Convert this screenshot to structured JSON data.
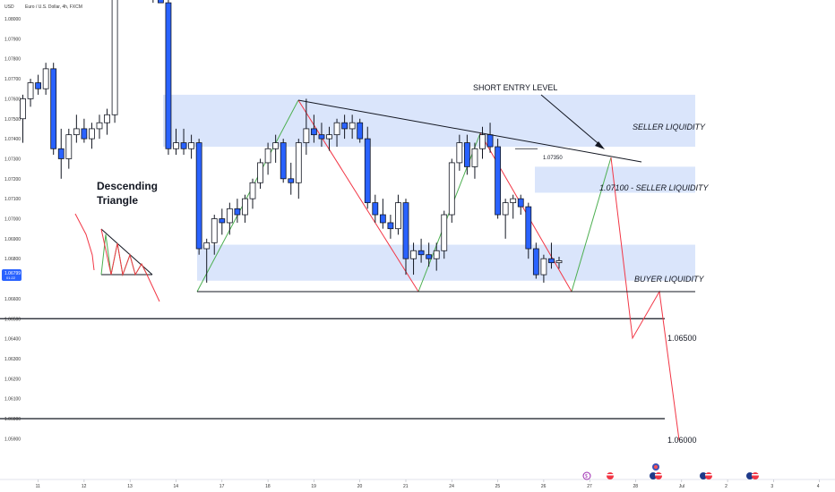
{
  "header": {
    "currency": "USD",
    "symbol_title": "Euro / U.S. Dollar, 4h, FXCM"
  },
  "price_badge": {
    "price": "1.06799",
    "countdown": "01:22"
  },
  "chart_data": {
    "type": "candlestick",
    "title": "Euro / U.S. Dollar, 4h, FXCM",
    "ylabel": "USD",
    "ylim": [
      1.0586,
      1.082
    ],
    "y_ticks": [
      "1.05900",
      "1.06000",
      "1.06100",
      "1.06200",
      "1.06300",
      "1.06400",
      "1.06500",
      "1.06600",
      "1.06700",
      "1.06800",
      "1.06900",
      "1.07000",
      "1.07100",
      "1.07200",
      "1.07300",
      "1.07400",
      "1.07500",
      "1.07600",
      "1.07700",
      "1.07800",
      "1.07900",
      "1.08000"
    ],
    "x_ticks": [
      {
        "label": "11",
        "bar": 2
      },
      {
        "label": "12",
        "bar": 8
      },
      {
        "label": "13",
        "bar": 14
      },
      {
        "label": "14",
        "bar": 20
      },
      {
        "label": "17",
        "bar": 26
      },
      {
        "label": "18",
        "bar": 32
      },
      {
        "label": "19",
        "bar": 38
      },
      {
        "label": "20",
        "bar": 44
      },
      {
        "label": "21",
        "bar": 50
      },
      {
        "label": "24",
        "bar": 56
      },
      {
        "label": "25",
        "bar": 62
      },
      {
        "label": "26",
        "bar": 68
      },
      {
        "label": "27",
        "bar": 74
      },
      {
        "label": "28",
        "bar": 80
      },
      {
        "label": "Jul",
        "bar": 86
      },
      {
        "label": "2",
        "bar": 92
      },
      {
        "label": "3",
        "bar": 98
      },
      {
        "label": "4",
        "bar": 104
      }
    ],
    "candles": [
      {
        "o": 1.075,
        "h": 1.0762,
        "l": 1.0738,
        "c": 1.076
      },
      {
        "o": 1.076,
        "h": 1.077,
        "l": 1.0756,
        "c": 1.0768
      },
      {
        "o": 1.0768,
        "h": 1.0772,
        "l": 1.0762,
        "c": 1.0765
      },
      {
        "o": 1.0765,
        "h": 1.0778,
        "l": 1.0762,
        "c": 1.0775
      },
      {
        "o": 1.0775,
        "h": 1.0778,
        "l": 1.0732,
        "c": 1.0735
      },
      {
        "o": 1.0735,
        "h": 1.0745,
        "l": 1.072,
        "c": 1.073
      },
      {
        "o": 1.073,
        "h": 1.0745,
        "l": 1.0725,
        "c": 1.0742
      },
      {
        "o": 1.0742,
        "h": 1.0752,
        "l": 1.0738,
        "c": 1.0745
      },
      {
        "o": 1.0745,
        "h": 1.075,
        "l": 1.0738,
        "c": 1.074
      },
      {
        "o": 1.074,
        "h": 1.0748,
        "l": 1.0735,
        "c": 1.0745
      },
      {
        "o": 1.0745,
        "h": 1.0752,
        "l": 1.074,
        "c": 1.0748
      },
      {
        "o": 1.0748,
        "h": 1.0755,
        "l": 1.0742,
        "c": 1.0752
      },
      {
        "o": 1.0752,
        "h": 1.083,
        "l": 1.0748,
        "c": 1.0828
      },
      {
        "o": 1.0828,
        "h": 1.0835,
        "l": 1.0815,
        "c": 1.082
      },
      {
        "o": 1.082,
        "h": 1.083,
        "l": 1.0815,
        "c": 1.0825
      },
      {
        "o": 1.0825,
        "h": 1.0832,
        "l": 1.0815,
        "c": 1.0822
      },
      {
        "o": 1.0822,
        "h": 1.083,
        "l": 1.081,
        "c": 1.0815
      },
      {
        "o": 1.0815,
        "h": 1.0825,
        "l": 1.0808,
        "c": 1.0818
      },
      {
        "o": 1.0818,
        "h": 1.0822,
        "l": 1.0808,
        "c": 1.0808
      },
      {
        "o": 1.0808,
        "h": 1.0812,
        "l": 1.0732,
        "c": 1.0735
      },
      {
        "o": 1.0735,
        "h": 1.0745,
        "l": 1.0732,
        "c": 1.0738
      },
      {
        "o": 1.0738,
        "h": 1.0745,
        "l": 1.0732,
        "c": 1.0735
      },
      {
        "o": 1.0735,
        "h": 1.0742,
        "l": 1.073,
        "c": 1.0738
      },
      {
        "o": 1.0738,
        "h": 1.074,
        "l": 1.0682,
        "c": 1.0685
      },
      {
        "o": 1.0685,
        "h": 1.069,
        "l": 1.0668,
        "c": 1.0688
      },
      {
        "o": 1.0688,
        "h": 1.0702,
        "l": 1.0682,
        "c": 1.07
      },
      {
        "o": 1.07,
        "h": 1.0705,
        "l": 1.0692,
        "c": 1.0698
      },
      {
        "o": 1.0698,
        "h": 1.0708,
        "l": 1.0692,
        "c": 1.0705
      },
      {
        "o": 1.0705,
        "h": 1.071,
        "l": 1.0698,
        "c": 1.0702
      },
      {
        "o": 1.0702,
        "h": 1.0712,
        "l": 1.0698,
        "c": 1.071
      },
      {
        "o": 1.071,
        "h": 1.072,
        "l": 1.0705,
        "c": 1.0718
      },
      {
        "o": 1.0718,
        "h": 1.073,
        "l": 1.0715,
        "c": 1.0728
      },
      {
        "o": 1.0728,
        "h": 1.0738,
        "l": 1.0722,
        "c": 1.0735
      },
      {
        "o": 1.0735,
        "h": 1.0742,
        "l": 1.0728,
        "c": 1.0738
      },
      {
        "o": 1.0738,
        "h": 1.074,
        "l": 1.0718,
        "c": 1.072
      },
      {
        "o": 1.072,
        "h": 1.0728,
        "l": 1.0712,
        "c": 1.0718
      },
      {
        "o": 1.0718,
        "h": 1.074,
        "l": 1.071,
        "c": 1.0738
      },
      {
        "o": 1.0738,
        "h": 1.076,
        "l": 1.0732,
        "c": 1.0745
      },
      {
        "o": 1.0745,
        "h": 1.0752,
        "l": 1.0738,
        "c": 1.0742
      },
      {
        "o": 1.0742,
        "h": 1.0748,
        "l": 1.0736,
        "c": 1.074
      },
      {
        "o": 1.074,
        "h": 1.0746,
        "l": 1.0734,
        "c": 1.0742
      },
      {
        "o": 1.0742,
        "h": 1.075,
        "l": 1.0736,
        "c": 1.0748
      },
      {
        "o": 1.0748,
        "h": 1.0752,
        "l": 1.074,
        "c": 1.0745
      },
      {
        "o": 1.0745,
        "h": 1.0752,
        "l": 1.074,
        "c": 1.0748
      },
      {
        "o": 1.0748,
        "h": 1.075,
        "l": 1.0738,
        "c": 1.074
      },
      {
        "o": 1.074,
        "h": 1.0746,
        "l": 1.0705,
        "c": 1.0708
      },
      {
        "o": 1.0708,
        "h": 1.0712,
        "l": 1.0698,
        "c": 1.0702
      },
      {
        "o": 1.0702,
        "h": 1.071,
        "l": 1.0695,
        "c": 1.0698
      },
      {
        "o": 1.0698,
        "h": 1.0702,
        "l": 1.069,
        "c": 1.0695
      },
      {
        "o": 1.0695,
        "h": 1.0712,
        "l": 1.0692,
        "c": 1.0708
      },
      {
        "o": 1.0708,
        "h": 1.071,
        "l": 1.0672,
        "c": 1.068
      },
      {
        "o": 1.068,
        "h": 1.0688,
        "l": 1.0672,
        "c": 1.0684
      },
      {
        "o": 1.0684,
        "h": 1.069,
        "l": 1.0678,
        "c": 1.0682
      },
      {
        "o": 1.0682,
        "h": 1.0688,
        "l": 1.0676,
        "c": 1.068
      },
      {
        "o": 1.068,
        "h": 1.0688,
        "l": 1.0674,
        "c": 1.0684
      },
      {
        "o": 1.0684,
        "h": 1.0704,
        "l": 1.068,
        "c": 1.0702
      },
      {
        "o": 1.0702,
        "h": 1.073,
        "l": 1.0698,
        "c": 1.0728
      },
      {
        "o": 1.0728,
        "h": 1.0742,
        "l": 1.0724,
        "c": 1.0738
      },
      {
        "o": 1.0738,
        "h": 1.0742,
        "l": 1.0722,
        "c": 1.0726
      },
      {
        "o": 1.0726,
        "h": 1.0738,
        "l": 1.072,
        "c": 1.0735
      },
      {
        "o": 1.0735,
        "h": 1.0746,
        "l": 1.073,
        "c": 1.0742
      },
      {
        "o": 1.0742,
        "h": 1.0748,
        "l": 1.0733,
        "c": 1.0736
      },
      {
        "o": 1.0736,
        "h": 1.074,
        "l": 1.07,
        "c": 1.0702
      },
      {
        "o": 1.0702,
        "h": 1.071,
        "l": 1.069,
        "c": 1.0708
      },
      {
        "o": 1.0708,
        "h": 1.0712,
        "l": 1.07,
        "c": 1.071
      },
      {
        "o": 1.071,
        "h": 1.0712,
        "l": 1.0702,
        "c": 1.0706
      },
      {
        "o": 1.0706,
        "h": 1.0708,
        "l": 1.068,
        "c": 1.0685
      },
      {
        "o": 1.0685,
        "h": 1.0688,
        "l": 1.067,
        "c": 1.0672
      },
      {
        "o": 1.0672,
        "h": 1.0682,
        "l": 1.0668,
        "c": 1.068
      },
      {
        "o": 1.068,
        "h": 1.0688,
        "l": 1.0675,
        "c": 1.0678
      },
      {
        "o": 1.0678,
        "h": 1.0681,
        "l": 1.0675,
        "c": 1.0679
      }
    ],
    "zones": [
      {
        "name": "seller-zone-top",
        "y1": 1.0736,
        "y2": 1.0762
      },
      {
        "name": "seller-zone-mid",
        "y1": 1.0713,
        "y2": 1.0726
      },
      {
        "name": "buyer-zone",
        "y1": 1.0669,
        "y2": 1.0687
      }
    ],
    "levels": [
      {
        "name": "level-107350",
        "label": "1.07350",
        "value": 1.0735
      },
      {
        "name": "level-106500",
        "label": "1.06500",
        "value": 1.065
      },
      {
        "name": "level-106000",
        "label": "1.06000",
        "value": 1.06
      }
    ],
    "annotations": {
      "short_entry": "SHORT ENTRY LEVEL",
      "seller_liquidity_top": "SELLER LIQUIDITY",
      "seller_liquidity_mid": "1.07100 - SELLER LIQUIDITY",
      "buyer_liquidity": "BUYER LIQUIDITY",
      "pattern_title_line1": "Descending",
      "pattern_title_line2": "Triangle"
    },
    "colors": {
      "up_candle": "#ffffff",
      "down_candle": "#2962ff",
      "candle_outline": "#131722",
      "zone_fill": "#d6e2fb",
      "bull_path": "#4caf50",
      "bear_path": "#f23645",
      "price_badge": "#2962ff"
    }
  }
}
